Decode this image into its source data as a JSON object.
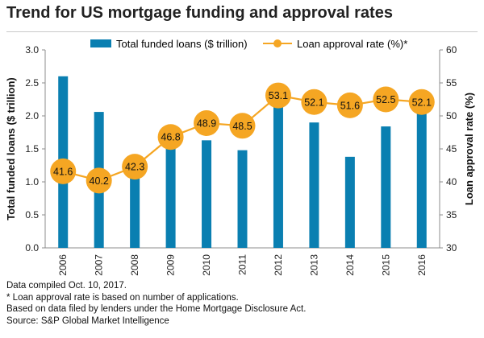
{
  "chart_data": {
    "type": "bar",
    "title": "Trend for US mortgage funding and approval rates",
    "categories": [
      "2006",
      "2007",
      "2008",
      "2009",
      "2010",
      "2011",
      "2012",
      "2013",
      "2014",
      "2015",
      "2016"
    ],
    "series": [
      {
        "name": "Total funded loans ($ trillion)",
        "type": "bar",
        "axis": "left",
        "color": "#0a7fb1",
        "values": [
          2.6,
          2.06,
          1.12,
          1.52,
          1.63,
          1.48,
          2.15,
          1.9,
          1.38,
          1.84,
          2.1
        ]
      },
      {
        "name": "Loan approval rate (%)*",
        "type": "line",
        "axis": "right",
        "color": "#f5a623",
        "values": [
          41.6,
          40.2,
          42.3,
          46.8,
          48.9,
          48.5,
          53.1,
          52.1,
          51.6,
          52.5,
          52.1
        ],
        "labels": [
          "41.6",
          "40.2",
          "42.3",
          "46.8",
          "48.9",
          "48.5",
          "53.1",
          "52.1",
          "51.6",
          "52.5",
          "52.1"
        ]
      }
    ],
    "ylabel": "Total funded loans ($ trillion)",
    "y2label": "Loan approval rate (%)",
    "ylim": [
      0,
      3.0
    ],
    "y2lim": [
      30,
      60
    ],
    "yticks": [
      "0.0",
      "0.5",
      "1.0",
      "1.5",
      "2.0",
      "2.5",
      "3.0"
    ],
    "y2ticks": [
      "30",
      "35",
      "40",
      "45",
      "50",
      "55",
      "60"
    ],
    "grid": false,
    "legend": "top"
  },
  "footnotes": [
    "Data compiled Oct. 10, 2017.",
    "* Loan approval rate is based on number of applications.",
    "Based on data filed by lenders under the Home Mortgage Disclosure Act.",
    "Source: S&P Global Market Intelligence"
  ]
}
